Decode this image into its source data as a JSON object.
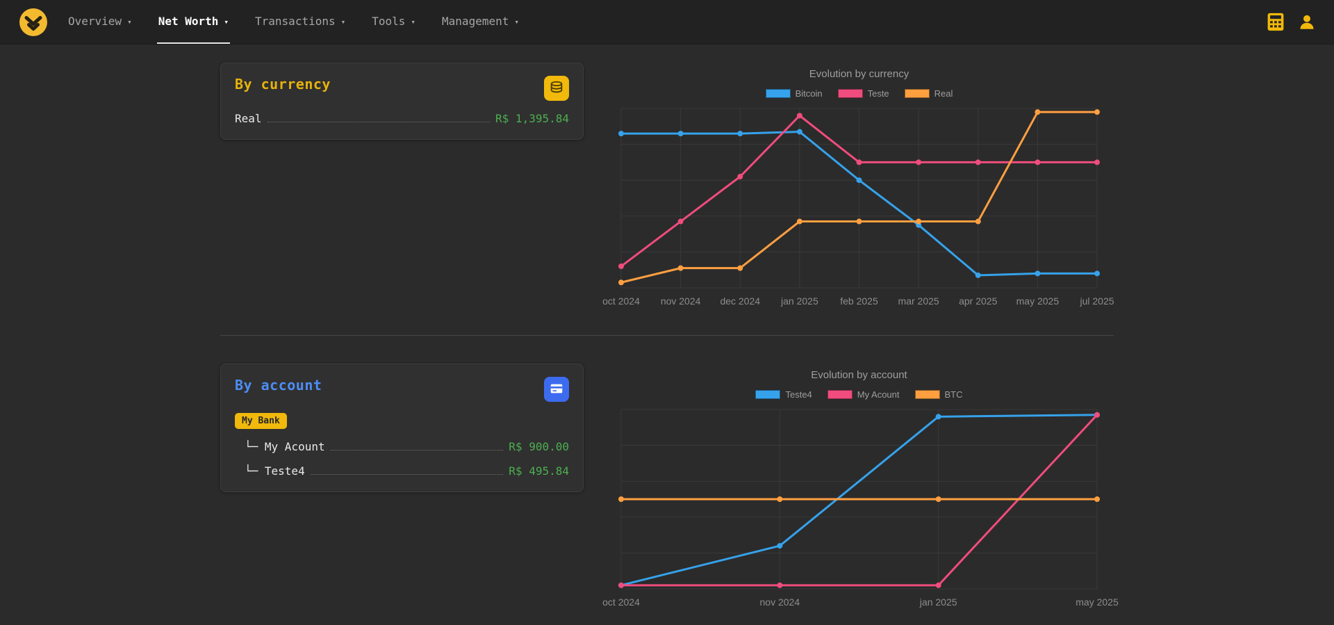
{
  "navbar": {
    "menus": [
      {
        "label": "Overview",
        "caret": "▾",
        "active": false
      },
      {
        "label": "Net Worth",
        "caret": "▾",
        "active": true
      },
      {
        "label": "Transactions",
        "caret": "▾",
        "active": false
      },
      {
        "label": "Tools",
        "caret": "▾",
        "active": false
      },
      {
        "label": "Management",
        "caret": "▾",
        "active": false
      }
    ]
  },
  "currency_card": {
    "title": "By currency",
    "rows": [
      {
        "label": "Real",
        "value": "R$ 1,395.84"
      }
    ]
  },
  "account_card": {
    "title": "By account",
    "group_badge": "My Bank",
    "rows": [
      {
        "label": "└─ My Acount",
        "value": "R$ 900.00"
      },
      {
        "label": "└─ Teste4",
        "value": "R$ 495.84"
      }
    ]
  },
  "colors": {
    "accent_yellow": "#f0b90b",
    "accent_blue": "#3d6bf0",
    "positive_green": "#4caf50",
    "series_blue": "#36a2eb",
    "series_pink": "#f04c7d",
    "series_orange": "#ff9f40"
  },
  "chart_data": [
    {
      "type": "line",
      "title": "Evolution by currency",
      "categories": [
        "oct 2024",
        "nov 2024",
        "dec 2024",
        "jan 2025",
        "feb 2025",
        "mar 2025",
        "apr 2025",
        "may 2025",
        "jul 2025"
      ],
      "series": [
        {
          "name": "Bitcoin",
          "color": "#36a2eb",
          "values": [
            86,
            86,
            86,
            87,
            60,
            35,
            7,
            8,
            8
          ]
        },
        {
          "name": "Teste",
          "color": "#f04c7d",
          "values": [
            12,
            37,
            62,
            96,
            70,
            70,
            70,
            70,
            70
          ]
        },
        {
          "name": "Real",
          "color": "#ff9f40",
          "values": [
            3,
            11,
            11,
            37,
            37,
            37,
            37,
            98,
            98
          ]
        }
      ],
      "ylim": [
        0,
        100
      ],
      "grid": true,
      "legend_position": "top"
    },
    {
      "type": "line",
      "title": "Evolution by account",
      "categories": [
        "oct 2024",
        "nov 2024",
        "jan 2025",
        "may 2025"
      ],
      "series": [
        {
          "name": "Teste4",
          "color": "#36a2eb",
          "values": [
            2,
            24,
            96,
            97
          ]
        },
        {
          "name": "My Acount",
          "color": "#f04c7d",
          "values": [
            2,
            2,
            2,
            97
          ]
        },
        {
          "name": "BTC",
          "color": "#ff9f40",
          "values": [
            50,
            50,
            50,
            50
          ]
        }
      ],
      "ylim": [
        0,
        100
      ],
      "grid": true,
      "legend_position": "top"
    }
  ]
}
